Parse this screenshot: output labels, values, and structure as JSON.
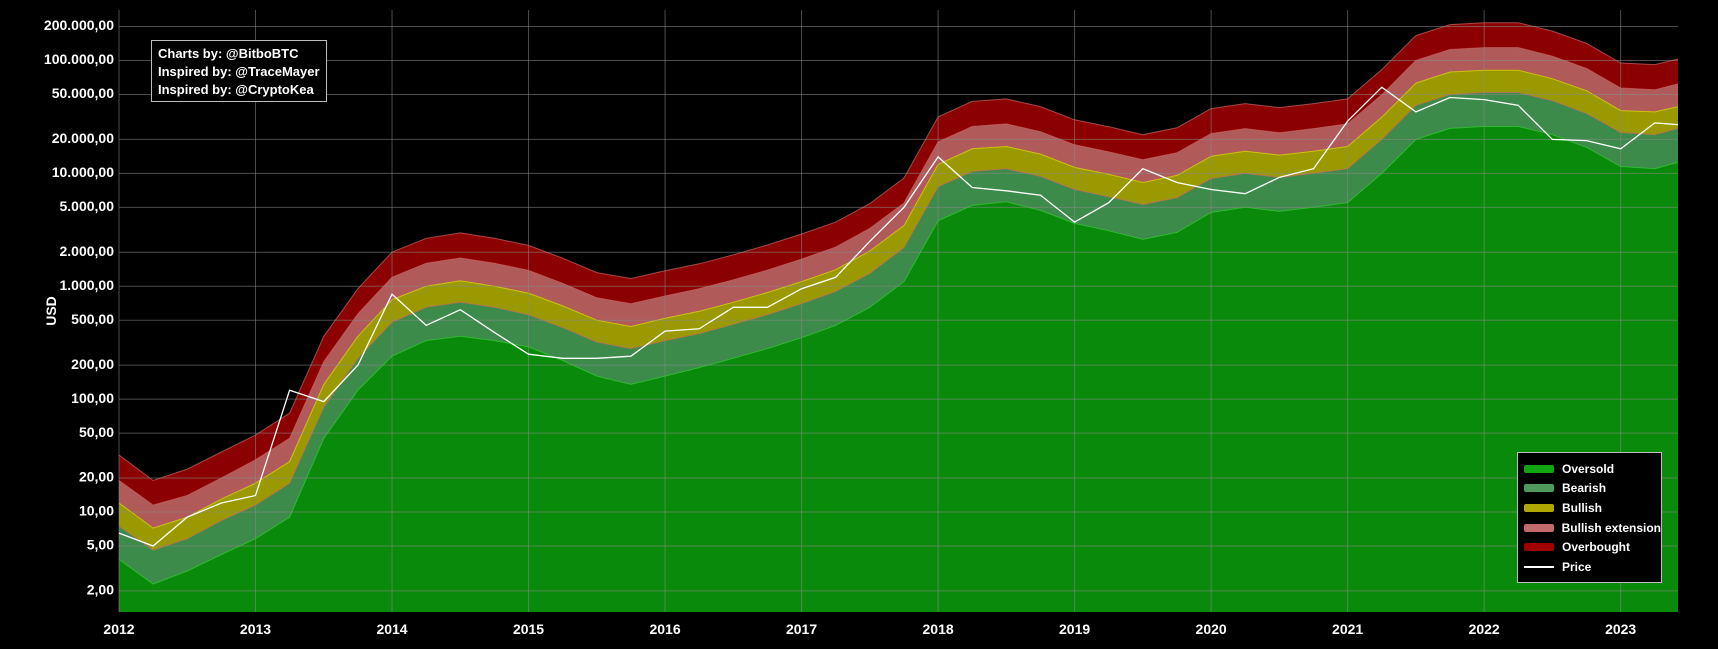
{
  "credits": {
    "line1": "Charts by: @BitboBTC",
    "line2": "Inspired by: @TraceMayer",
    "line3": "Inspired by: @CryptoKea"
  },
  "chart_data": {
    "type": "area",
    "title": "",
    "xlabel": "",
    "ylabel": "USD",
    "yscale": "log",
    "ylim": [
      1.3,
      280000
    ],
    "xlim": [
      "2012-01-01",
      "2023-06-01"
    ],
    "grid": true,
    "legend_position": "bottom-right",
    "y_ticks": [
      {
        "value": 2,
        "label": "2,00"
      },
      {
        "value": 5,
        "label": "5,00"
      },
      {
        "value": 10,
        "label": "10,00"
      },
      {
        "value": 20,
        "label": "20,00"
      },
      {
        "value": 50,
        "label": "50,00"
      },
      {
        "value": 100,
        "label": "100,00"
      },
      {
        "value": 200,
        "label": "200,00"
      },
      {
        "value": 500,
        "label": "500,00"
      },
      {
        "value": 1000,
        "label": "1.000,00"
      },
      {
        "value": 2000,
        "label": "2.000,00"
      },
      {
        "value": 5000,
        "label": "5.000,00"
      },
      {
        "value": 10000,
        "label": "10.000,00"
      },
      {
        "value": 20000,
        "label": "20.000,00"
      },
      {
        "value": 50000,
        "label": "50.000,00"
      },
      {
        "value": 100000,
        "label": "100.000,00"
      },
      {
        "value": 200000,
        "label": "200.000,00"
      }
    ],
    "x_ticks": [
      "2012",
      "2013",
      "2014",
      "2015",
      "2016",
      "2017",
      "2018",
      "2019",
      "2020",
      "2021",
      "2022",
      "2023"
    ],
    "x": [
      2012.0,
      2012.25,
      2012.5,
      2012.75,
      2013.0,
      2013.25,
      2013.5,
      2013.75,
      2014.0,
      2014.25,
      2014.5,
      2014.75,
      2015.0,
      2015.25,
      2015.5,
      2015.75,
      2016.0,
      2016.25,
      2016.5,
      2016.75,
      2017.0,
      2017.25,
      2017.5,
      2017.75,
      2018.0,
      2018.25,
      2018.5,
      2018.75,
      2019.0,
      2019.25,
      2019.5,
      2019.75,
      2020.0,
      2020.25,
      2020.5,
      2020.75,
      2021.0,
      2021.25,
      2021.5,
      2021.75,
      2022.0,
      2022.25,
      2022.5,
      2022.75,
      2023.0,
      2023.25,
      2023.42
    ],
    "series": [
      {
        "name": "Oversold",
        "color": "#0a8a0a",
        "values": [
          3.8,
          2.3,
          3.0,
          4.2,
          5.8,
          9,
          45,
          120,
          240,
          330,
          360,
          330,
          290,
          220,
          160,
          135,
          160,
          190,
          230,
          280,
          350,
          450,
          650,
          1100,
          3800,
          5200,
          5600,
          4700,
          3600,
          3100,
          2600,
          3000,
          4500,
          5000,
          4600,
          5000,
          5500,
          10000,
          20000,
          25000,
          26000,
          26000,
          22000,
          17000,
          11500,
          11000,
          12500
        ]
      },
      {
        "name": "Bearish",
        "color": "#3d8b4a",
        "values": [
          7.5,
          4.6,
          5.8,
          8.4,
          11.5,
          18,
          85,
          230,
          480,
          650,
          720,
          650,
          560,
          430,
          320,
          280,
          330,
          380,
          460,
          560,
          700,
          900,
          1300,
          2200,
          7600,
          10400,
          11000,
          9400,
          7200,
          6200,
          5300,
          6100,
          9000,
          10000,
          9200,
          10000,
          11000,
          20000,
          40000,
          50000,
          52000,
          52000,
          44000,
          34000,
          23000,
          22000,
          25000
        ]
      },
      {
        "name": "Bullish",
        "color": "#9a9a00",
        "values": [
          12,
          7.2,
          9,
          13,
          18,
          28,
          135,
          360,
          760,
          1000,
          1120,
          1000,
          870,
          670,
          500,
          440,
          520,
          600,
          720,
          880,
          1100,
          1400,
          2050,
          3450,
          12000,
          16500,
          17300,
          14800,
          11300,
          9800,
          8300,
          9600,
          14200,
          15700,
          14500,
          15700,
          17300,
          31500,
          63000,
          79000,
          82000,
          82000,
          69000,
          54000,
          36000,
          35000,
          39000
        ]
      },
      {
        "name": "Bullish extension",
        "color": "#b05a5a",
        "values": [
          19,
          11.5,
          14,
          20,
          29,
          45,
          215,
          570,
          1200,
          1600,
          1780,
          1600,
          1380,
          1060,
          790,
          700,
          820,
          950,
          1140,
          1390,
          1740,
          2220,
          3250,
          5460,
          19000,
          26000,
          27400,
          23400,
          17900,
          15500,
          13200,
          15200,
          22500,
          24900,
          22900,
          24900,
          27400,
          49800,
          100000,
          125000,
          130000,
          130000,
          109000,
          85000,
          57000,
          55000,
          62000
        ]
      },
      {
        "name": "Overbought",
        "color": "#8b0000",
        "values": [
          32,
          19,
          24,
          34,
          48,
          75,
          360,
          950,
          2000,
          2660,
          2970,
          2660,
          2300,
          1770,
          1320,
          1170,
          1370,
          1580,
          1900,
          2320,
          2900,
          3700,
          5400,
          9100,
          31600,
          43400,
          45700,
          39000,
          29800,
          25900,
          22000,
          25300,
          37500,
          41500,
          38200,
          41500,
          45700,
          83000,
          166000,
          208000,
          216000,
          216000,
          182000,
          142000,
          95000,
          92000,
          103000
        ]
      },
      {
        "name": "Price",
        "color": "#ffffff",
        "values": [
          6.5,
          5,
          9,
          12,
          14,
          120,
          95,
          200,
          850,
          450,
          620,
          390,
          250,
          230,
          230,
          240,
          400,
          420,
          650,
          650,
          950,
          1200,
          2500,
          5000,
          14000,
          7500,
          7000,
          6400,
          3700,
          5500,
          11000,
          8300,
          7200,
          6600,
          9200,
          11000,
          29000,
          58000,
          35000,
          47000,
          45000,
          40000,
          20000,
          19500,
          16500,
          28000,
          27000
        ]
      }
    ]
  }
}
